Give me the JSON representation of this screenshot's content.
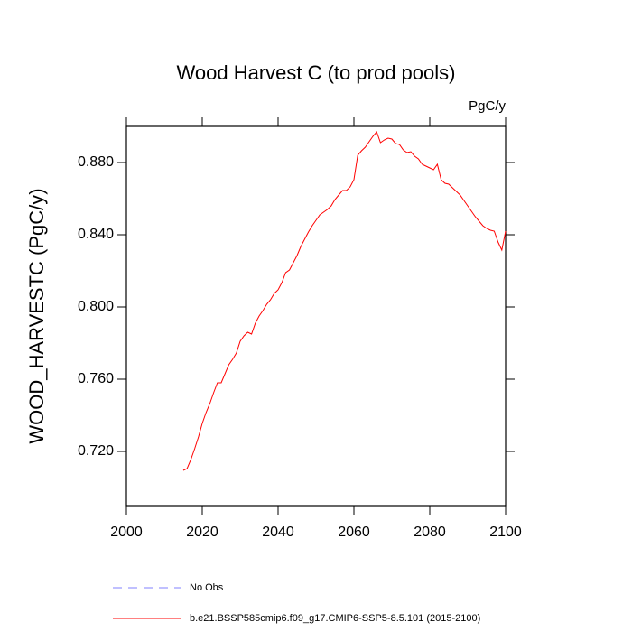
{
  "chart_data": {
    "type": "line",
    "title": "Wood Harvest C (to prod pools)",
    "units": "PgC/y",
    "ylabel": "WOOD_HARVESTC  (PgC/y)",
    "x": [
      2015,
      2016,
      2017,
      2018,
      2019,
      2020,
      2021,
      2022,
      2023,
      2024,
      2025,
      2026,
      2027,
      2028,
      2029,
      2030,
      2031,
      2032,
      2033,
      2034,
      2035,
      2036,
      2037,
      2038,
      2039,
      2040,
      2041,
      2042,
      2043,
      2044,
      2045,
      2046,
      2047,
      2048,
      2049,
      2050,
      2051,
      2052,
      2053,
      2054,
      2055,
      2056,
      2057,
      2058,
      2059,
      2060,
      2061,
      2062,
      2063,
      2064,
      2065,
      2066,
      2067,
      2068,
      2069,
      2070,
      2071,
      2072,
      2073,
      2074,
      2075,
      2076,
      2077,
      2078,
      2079,
      2080,
      2081,
      2082,
      2083,
      2084,
      2085,
      2086,
      2087,
      2088,
      2089,
      2090,
      2091,
      2092,
      2093,
      2094,
      2095,
      2096,
      2097,
      2098,
      2099,
      2100
    ],
    "series": [
      {
        "name": "b.e21.BSSP585cmip6.f09_g17.CMIP6-SSP5-8.5.101 (2015-2100)",
        "color": "#ff0000",
        "values": [
          0.7095,
          0.7105,
          0.7155,
          0.7215,
          0.728,
          0.7355,
          0.7415,
          0.7465,
          0.7525,
          0.758,
          0.758,
          0.763,
          0.768,
          0.771,
          0.7745,
          0.781,
          0.784,
          0.786,
          0.785,
          0.791,
          0.795,
          0.798,
          0.8015,
          0.804,
          0.8075,
          0.8095,
          0.8135,
          0.819,
          0.8205,
          0.8245,
          0.8285,
          0.8335,
          0.8375,
          0.8415,
          0.845,
          0.848,
          0.851,
          0.8525,
          0.854,
          0.856,
          0.8595,
          0.862,
          0.8645,
          0.8645,
          0.8665,
          0.8705,
          0.884,
          0.8865,
          0.8885,
          0.8915,
          0.8945,
          0.897,
          0.891,
          0.8925,
          0.8935,
          0.893,
          0.8905,
          0.89,
          0.887,
          0.8855,
          0.886,
          0.8835,
          0.882,
          0.879,
          0.878,
          0.877,
          0.876,
          0.879,
          0.8705,
          0.8685,
          0.868,
          0.866,
          0.864,
          0.862,
          0.859,
          0.856,
          0.853,
          0.85,
          0.8475,
          0.845,
          0.8435,
          0.8425,
          0.842,
          0.836,
          0.8315,
          0.842
        ]
      }
    ],
    "obs_legend": {
      "name": "No Obs",
      "color": "#8080ff",
      "dash": true
    },
    "xlim": [
      2000,
      2100
    ],
    "xticks": [
      2000,
      2020,
      2040,
      2060,
      2080,
      2100
    ],
    "ylim": [
      0.69,
      0.9
    ],
    "yticks": [
      {
        "value": 0.72,
        "label": "0.720"
      },
      {
        "value": 0.76,
        "label": "0.760"
      },
      {
        "value": 0.8,
        "label": "0.800"
      },
      {
        "value": 0.84,
        "label": "0.840"
      },
      {
        "value": 0.88,
        "label": "0.880"
      }
    ]
  }
}
